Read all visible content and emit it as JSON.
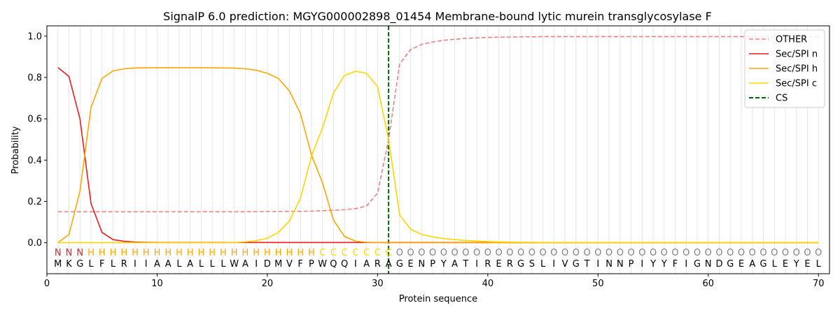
{
  "chart_data": {
    "type": "line",
    "title": "SignalP 6.0 prediction: MGYG000002898_01454 Membrane-bound lytic murein transglycosylase F",
    "xlabel": "Protein sequence",
    "ylabel": "Probability",
    "xlim": [
      0,
      71
    ],
    "ylim": [
      -0.15,
      1.05
    ],
    "xticks": [
      0,
      10,
      20,
      30,
      40,
      50,
      60,
      70
    ],
    "yticks": [
      0.0,
      0.2,
      0.4,
      0.6,
      0.8,
      1.0
    ],
    "grid": "vertical lines at each residue",
    "legend_position": "top-right",
    "sequence": "MKGLFLRIIAALALLLWAIDMVFPWQQIARAGENPYATIRERGSLIVGTINNPIYYFIGNDGEAGLEYEL",
    "labels": "NNNHHHHHHHHHHHHHHHHHHHHHCCCCCCCOOOOOOOOOOOOOOOOOOOOOOOOOOOOOOOOOOOOOOO",
    "label_colors": {
      "N": "#ee1c1c",
      "H": "#ffa500",
      "C": "#ffd500",
      "O": "#808080"
    },
    "cs_position": 31,
    "series": [
      {
        "name": "OTHER",
        "color": "#ee8080",
        "dash": true,
        "values": [
          0.15,
          0.15,
          0.15,
          0.15,
          0.15,
          0.15,
          0.15,
          0.15,
          0.15,
          0.15,
          0.15,
          0.15,
          0.15,
          0.15,
          0.15,
          0.15,
          0.15,
          0.15,
          0.151,
          0.151,
          0.151,
          0.152,
          0.152,
          0.153,
          0.155,
          0.157,
          0.16,
          0.165,
          0.178,
          0.24,
          0.5,
          0.865,
          0.935,
          0.96,
          0.972,
          0.98,
          0.985,
          0.989,
          0.992,
          0.994,
          0.995,
          0.996,
          0.997,
          0.997,
          0.998,
          0.998,
          0.998,
          0.998,
          0.998,
          0.998,
          0.998,
          0.998,
          0.998,
          0.998,
          0.998,
          0.998,
          0.998,
          0.998,
          0.998,
          0.998,
          0.998,
          0.998,
          0.998,
          0.998,
          0.998,
          0.998,
          0.998,
          0.998,
          0.998,
          0.998
        ]
      },
      {
        "name": "Sec/SPI n",
        "color": "#ee1c1c",
        "dash": false,
        "values": [
          0.848,
          0.805,
          0.6,
          0.19,
          0.05,
          0.015,
          0.007,
          0.003,
          0.002,
          0.001,
          0.001,
          0.001,
          0.001,
          0.001,
          0.001,
          0.001,
          0.001,
          0.001,
          0.001,
          0.001,
          0.001,
          0.001,
          0.001,
          0.001,
          0.001,
          0.001,
          0.001,
          0.001,
          0.001,
          0.001,
          0.001,
          0.001,
          0.001,
          0.001,
          0.001,
          0.001,
          0.001,
          0.001,
          0.001,
          0.001,
          0.001,
          0.001,
          0.001,
          0.001,
          0.001,
          0.001,
          0.001,
          0.001,
          0.001,
          0.001,
          0.001,
          0.001,
          0.001,
          0.001,
          0.001,
          0.001,
          0.001,
          0.001,
          0.001,
          0.001,
          0.001,
          0.001,
          0.001,
          0.001,
          0.001,
          0.001,
          0.001,
          0.001,
          0.001,
          0.001
        ]
      },
      {
        "name": "Sec/SPI h",
        "color": "#ffa500",
        "dash": false,
        "values": [
          0.0,
          0.04,
          0.25,
          0.655,
          0.795,
          0.832,
          0.842,
          0.846,
          0.847,
          0.847,
          0.847,
          0.847,
          0.847,
          0.847,
          0.847,
          0.846,
          0.845,
          0.842,
          0.835,
          0.82,
          0.795,
          0.735,
          0.625,
          0.425,
          0.29,
          0.11,
          0.03,
          0.008,
          0.002,
          0.001,
          0.0,
          0.0,
          0.0,
          0.0,
          0.0,
          0.0,
          0.0,
          0.0,
          0.0,
          0.0,
          0.0,
          0.0,
          0.0,
          0.0,
          0.0,
          0.0,
          0.0,
          0.0,
          0.0,
          0.0,
          0.0,
          0.0,
          0.0,
          0.0,
          0.0,
          0.0,
          0.0,
          0.0,
          0.0,
          0.0,
          0.0,
          0.0,
          0.0,
          0.0,
          0.0,
          0.0,
          0.0,
          0.0,
          0.0,
          0.0
        ]
      },
      {
        "name": "Sec/SPI c",
        "color": "#ffd500",
        "dash": false,
        "values": [
          0.0,
          0.0,
          0.0,
          0.0,
          0.0,
          0.0,
          0.0,
          0.0,
          0.0,
          0.0,
          0.0,
          0.0,
          0.0,
          0.0,
          0.0,
          0.0,
          0.001,
          0.004,
          0.01,
          0.022,
          0.05,
          0.105,
          0.215,
          0.42,
          0.555,
          0.725,
          0.81,
          0.83,
          0.82,
          0.755,
          0.5,
          0.135,
          0.065,
          0.04,
          0.028,
          0.02,
          0.015,
          0.011,
          0.008,
          0.006,
          0.004,
          0.003,
          0.002,
          0.002,
          0.001,
          0.001,
          0.001,
          0.001,
          0.001,
          0.001,
          0.001,
          0.001,
          0.001,
          0.001,
          0.001,
          0.001,
          0.001,
          0.001,
          0.001,
          0.001,
          0.001,
          0.001,
          0.001,
          0.001,
          0.001,
          0.001,
          0.001,
          0.001,
          0.001,
          0.001
        ]
      }
    ],
    "cs_series": {
      "name": "CS",
      "color": "#006400"
    }
  }
}
